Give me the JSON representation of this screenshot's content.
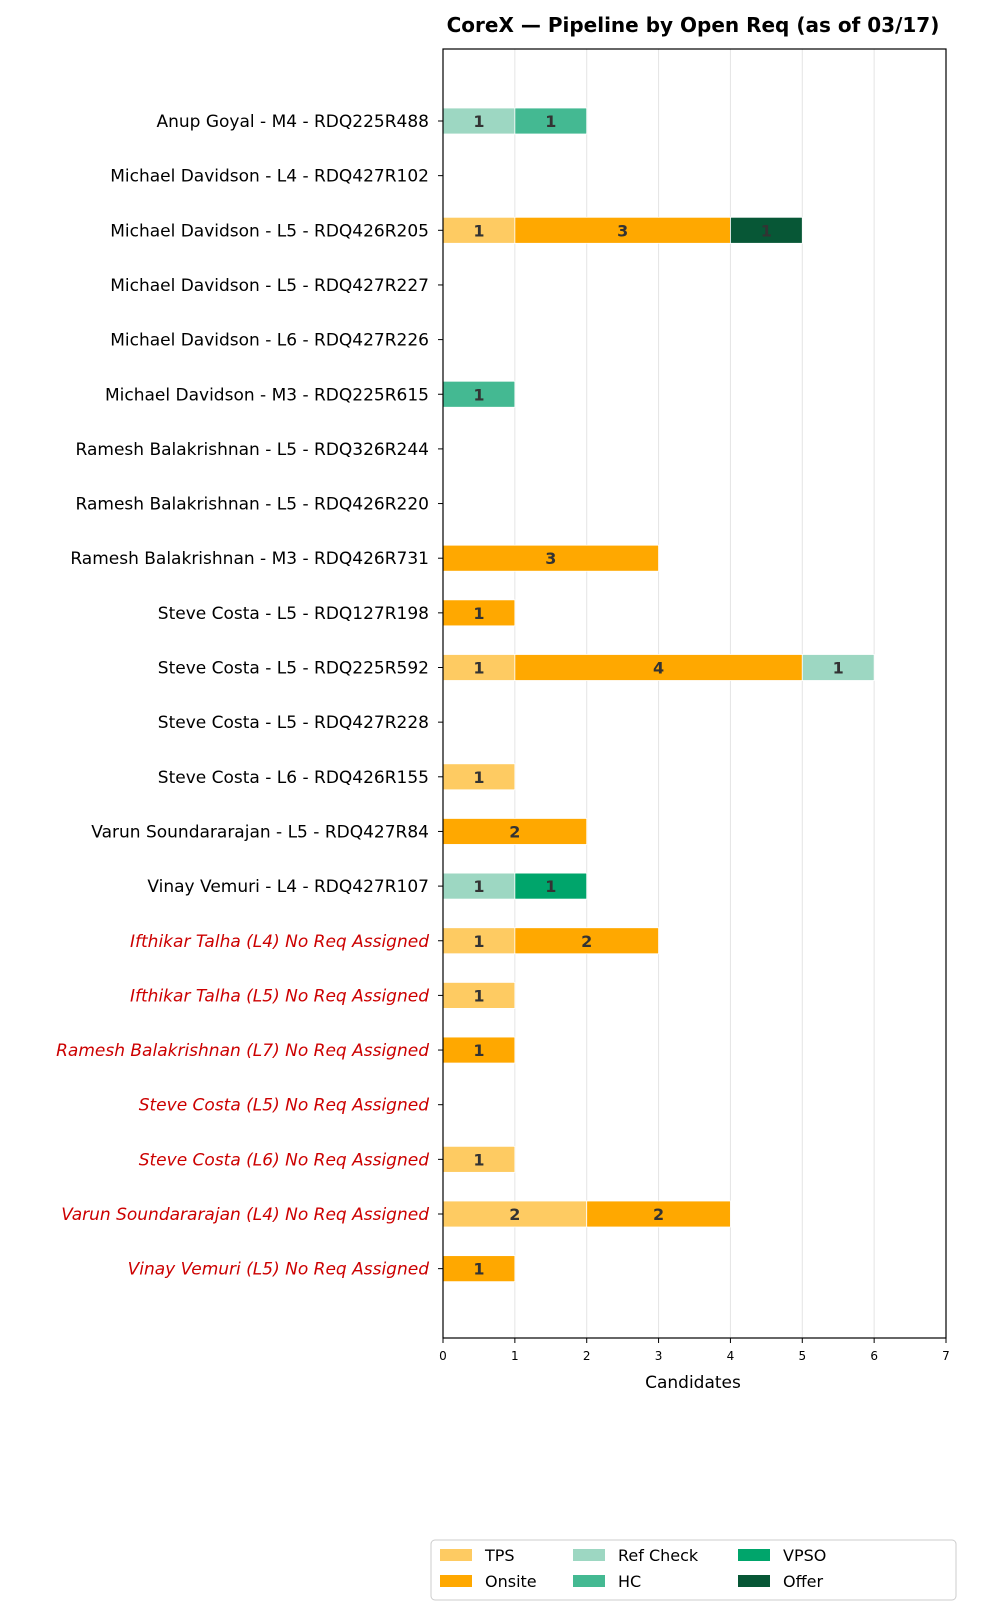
{
  "chart_data": {
    "type": "bar",
    "orientation": "horizontal",
    "stacked": true,
    "title": "CoreX — Pipeline by Open Req (as of 03/17)",
    "xlabel": "Candidates",
    "ylabel": "",
    "xlim": [
      0,
      7
    ],
    "xticks": [
      0,
      1,
      2,
      3,
      4,
      5,
      6,
      7
    ],
    "grid": "vertical",
    "legend_position": "bottom-right",
    "categories": [
      "Anup Goyal - M4 - RDQ225R488",
      "Michael Davidson - L4 - RDQ427R102",
      "Michael Davidson - L5 - RDQ426R205",
      "Michael Davidson - L5 - RDQ427R227",
      "Michael Davidson - L6 - RDQ427R226",
      "Michael Davidson - M3 - RDQ225R615",
      "Ramesh Balakrishnan - L5 - RDQ326R244",
      "Ramesh Balakrishnan - L5 - RDQ426R220",
      "Ramesh Balakrishnan - M3 - RDQ426R731",
      "Steve Costa - L5 - RDQ127R198",
      "Steve Costa - L5 - RDQ225R592",
      "Steve Costa - L5 - RDQ427R228",
      "Steve Costa - L6 - RDQ426R155",
      "Varun Soundararajan - L5 - RDQ427R84",
      "Vinay Vemuri - L4 - RDQ427R107",
      "Ifthikar Talha (L4) No Req Assigned",
      "Ifthikar Talha (L5) No Req Assigned",
      "Ramesh Balakrishnan (L7) No Req Assigned",
      "Steve Costa (L5) No Req Assigned",
      "Steve Costa (L6) No Req Assigned",
      "Varun Soundararajan (L4) No Req Assigned",
      "Vinay Vemuri (L5) No Req Assigned"
    ],
    "unassigned_category_color": "#cc0000",
    "series": [
      {
        "name": "TPS",
        "color": "#fecb62",
        "values": [
          0,
          0,
          1,
          0,
          0,
          0,
          0,
          0,
          0,
          0,
          1,
          0,
          1,
          0,
          0,
          1,
          1,
          0,
          0,
          1,
          2,
          0
        ]
      },
      {
        "name": "Onsite",
        "color": "#ffa800",
        "values": [
          0,
          0,
          3,
          0,
          0,
          0,
          0,
          0,
          3,
          1,
          4,
          0,
          0,
          2,
          0,
          2,
          0,
          1,
          0,
          0,
          2,
          1
        ]
      },
      {
        "name": "Ref Check",
        "color": "#9dd7c2",
        "values": [
          1,
          0,
          0,
          0,
          0,
          0,
          0,
          0,
          0,
          0,
          1,
          0,
          0,
          0,
          1,
          0,
          0,
          0,
          0,
          0,
          0,
          0
        ]
      },
      {
        "name": "HC",
        "color": "#44b992",
        "values": [
          1,
          0,
          0,
          0,
          0,
          1,
          0,
          0,
          0,
          0,
          0,
          0,
          0,
          0,
          0,
          0,
          0,
          0,
          0,
          0,
          0,
          0
        ]
      },
      {
        "name": "VPSO",
        "color": "#00a56b",
        "values": [
          0,
          0,
          0,
          0,
          0,
          0,
          0,
          0,
          0,
          0,
          0,
          0,
          0,
          0,
          1,
          0,
          0,
          0,
          0,
          0,
          0,
          0
        ]
      },
      {
        "name": "Offer",
        "color": "#075736",
        "values": [
          0,
          0,
          1,
          0,
          0,
          0,
          0,
          0,
          0,
          0,
          0,
          0,
          0,
          0,
          0,
          0,
          0,
          0,
          0,
          0,
          0,
          0
        ]
      }
    ]
  }
}
